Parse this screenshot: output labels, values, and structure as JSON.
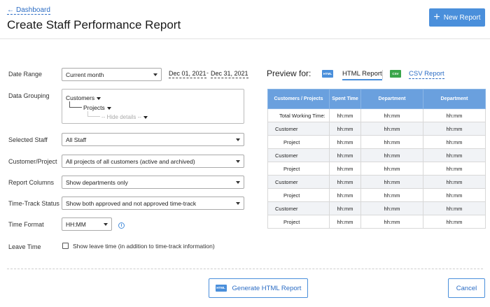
{
  "header": {
    "back_label": "Dashboard",
    "title": "Create Staff Performance Report",
    "new_report_label": "New Report"
  },
  "form": {
    "date_range": {
      "label": "Date Range",
      "value": "Current month",
      "start": "Dec 01, 2021",
      "separator": "-",
      "end": "Dec 31, 2021"
    },
    "data_grouping": {
      "label": "Data Grouping",
      "level1": "Customers",
      "level2": "Projects",
      "level3": "-- Hide details --"
    },
    "selected_staff": {
      "label": "Selected Staff",
      "value": "All Staff"
    },
    "customer_project": {
      "label": "Customer/Project",
      "value": "All projects of all customers (active and archived)"
    },
    "report_columns": {
      "label": "Report Columns",
      "value": "Show departments only"
    },
    "time_track_status": {
      "label": "Time-Track Status",
      "value": "Show both approved and not approved time-track"
    },
    "time_format": {
      "label": "Time Format",
      "value": "HH:MM",
      "info_icon": "info-icon"
    },
    "leave_time": {
      "label": "Leave Time",
      "checkbox_label": "Show leave time (in addition to time-track information)",
      "checked": false
    }
  },
  "preview": {
    "label": "Preview for:",
    "html_icon_text": "HTML",
    "html_tab": "HTML Report",
    "csv_icon_text": "CSV",
    "csv_tab": "CSV Report",
    "columns": [
      "Customers / Projects",
      "Spent Time",
      "Department",
      "Department"
    ],
    "rows": [
      {
        "name": "Total Working Time:",
        "kind": "total",
        "values": [
          "hh:mm",
          "hh:mm",
          "hh:mm"
        ]
      },
      {
        "name": "Customer",
        "kind": "customer",
        "values": [
          "hh:mm",
          "hh:mm",
          "hh:mm"
        ]
      },
      {
        "name": "Project",
        "kind": "project",
        "values": [
          "hh:mm",
          "hh:mm",
          "hh:mm"
        ]
      },
      {
        "name": "Customer",
        "kind": "customer",
        "values": [
          "hh:mm",
          "hh:mm",
          "hh:mm"
        ]
      },
      {
        "name": "Project",
        "kind": "project",
        "values": [
          "hh:mm",
          "hh:mm",
          "hh:mm"
        ]
      },
      {
        "name": "Customer",
        "kind": "customer",
        "values": [
          "hh:mm",
          "hh:mm",
          "hh:mm"
        ]
      },
      {
        "name": "Project",
        "kind": "project",
        "values": [
          "hh:mm",
          "hh:mm",
          "hh:mm"
        ]
      },
      {
        "name": "Customer",
        "kind": "customer",
        "values": [
          "hh:mm",
          "hh:mm",
          "hh:mm"
        ]
      },
      {
        "name": "Project",
        "kind": "project",
        "values": [
          "hh:mm",
          "hh:mm",
          "hh:mm"
        ]
      }
    ]
  },
  "footer": {
    "generate_icon_text": "HTML",
    "generate_label": "Generate HTML Report",
    "cancel_label": "Cancel"
  },
  "colors": {
    "accent": "#4a8fdb",
    "link": "#2b6cc4",
    "table_header": "#6aa0de",
    "csv": "#3aa54a"
  }
}
